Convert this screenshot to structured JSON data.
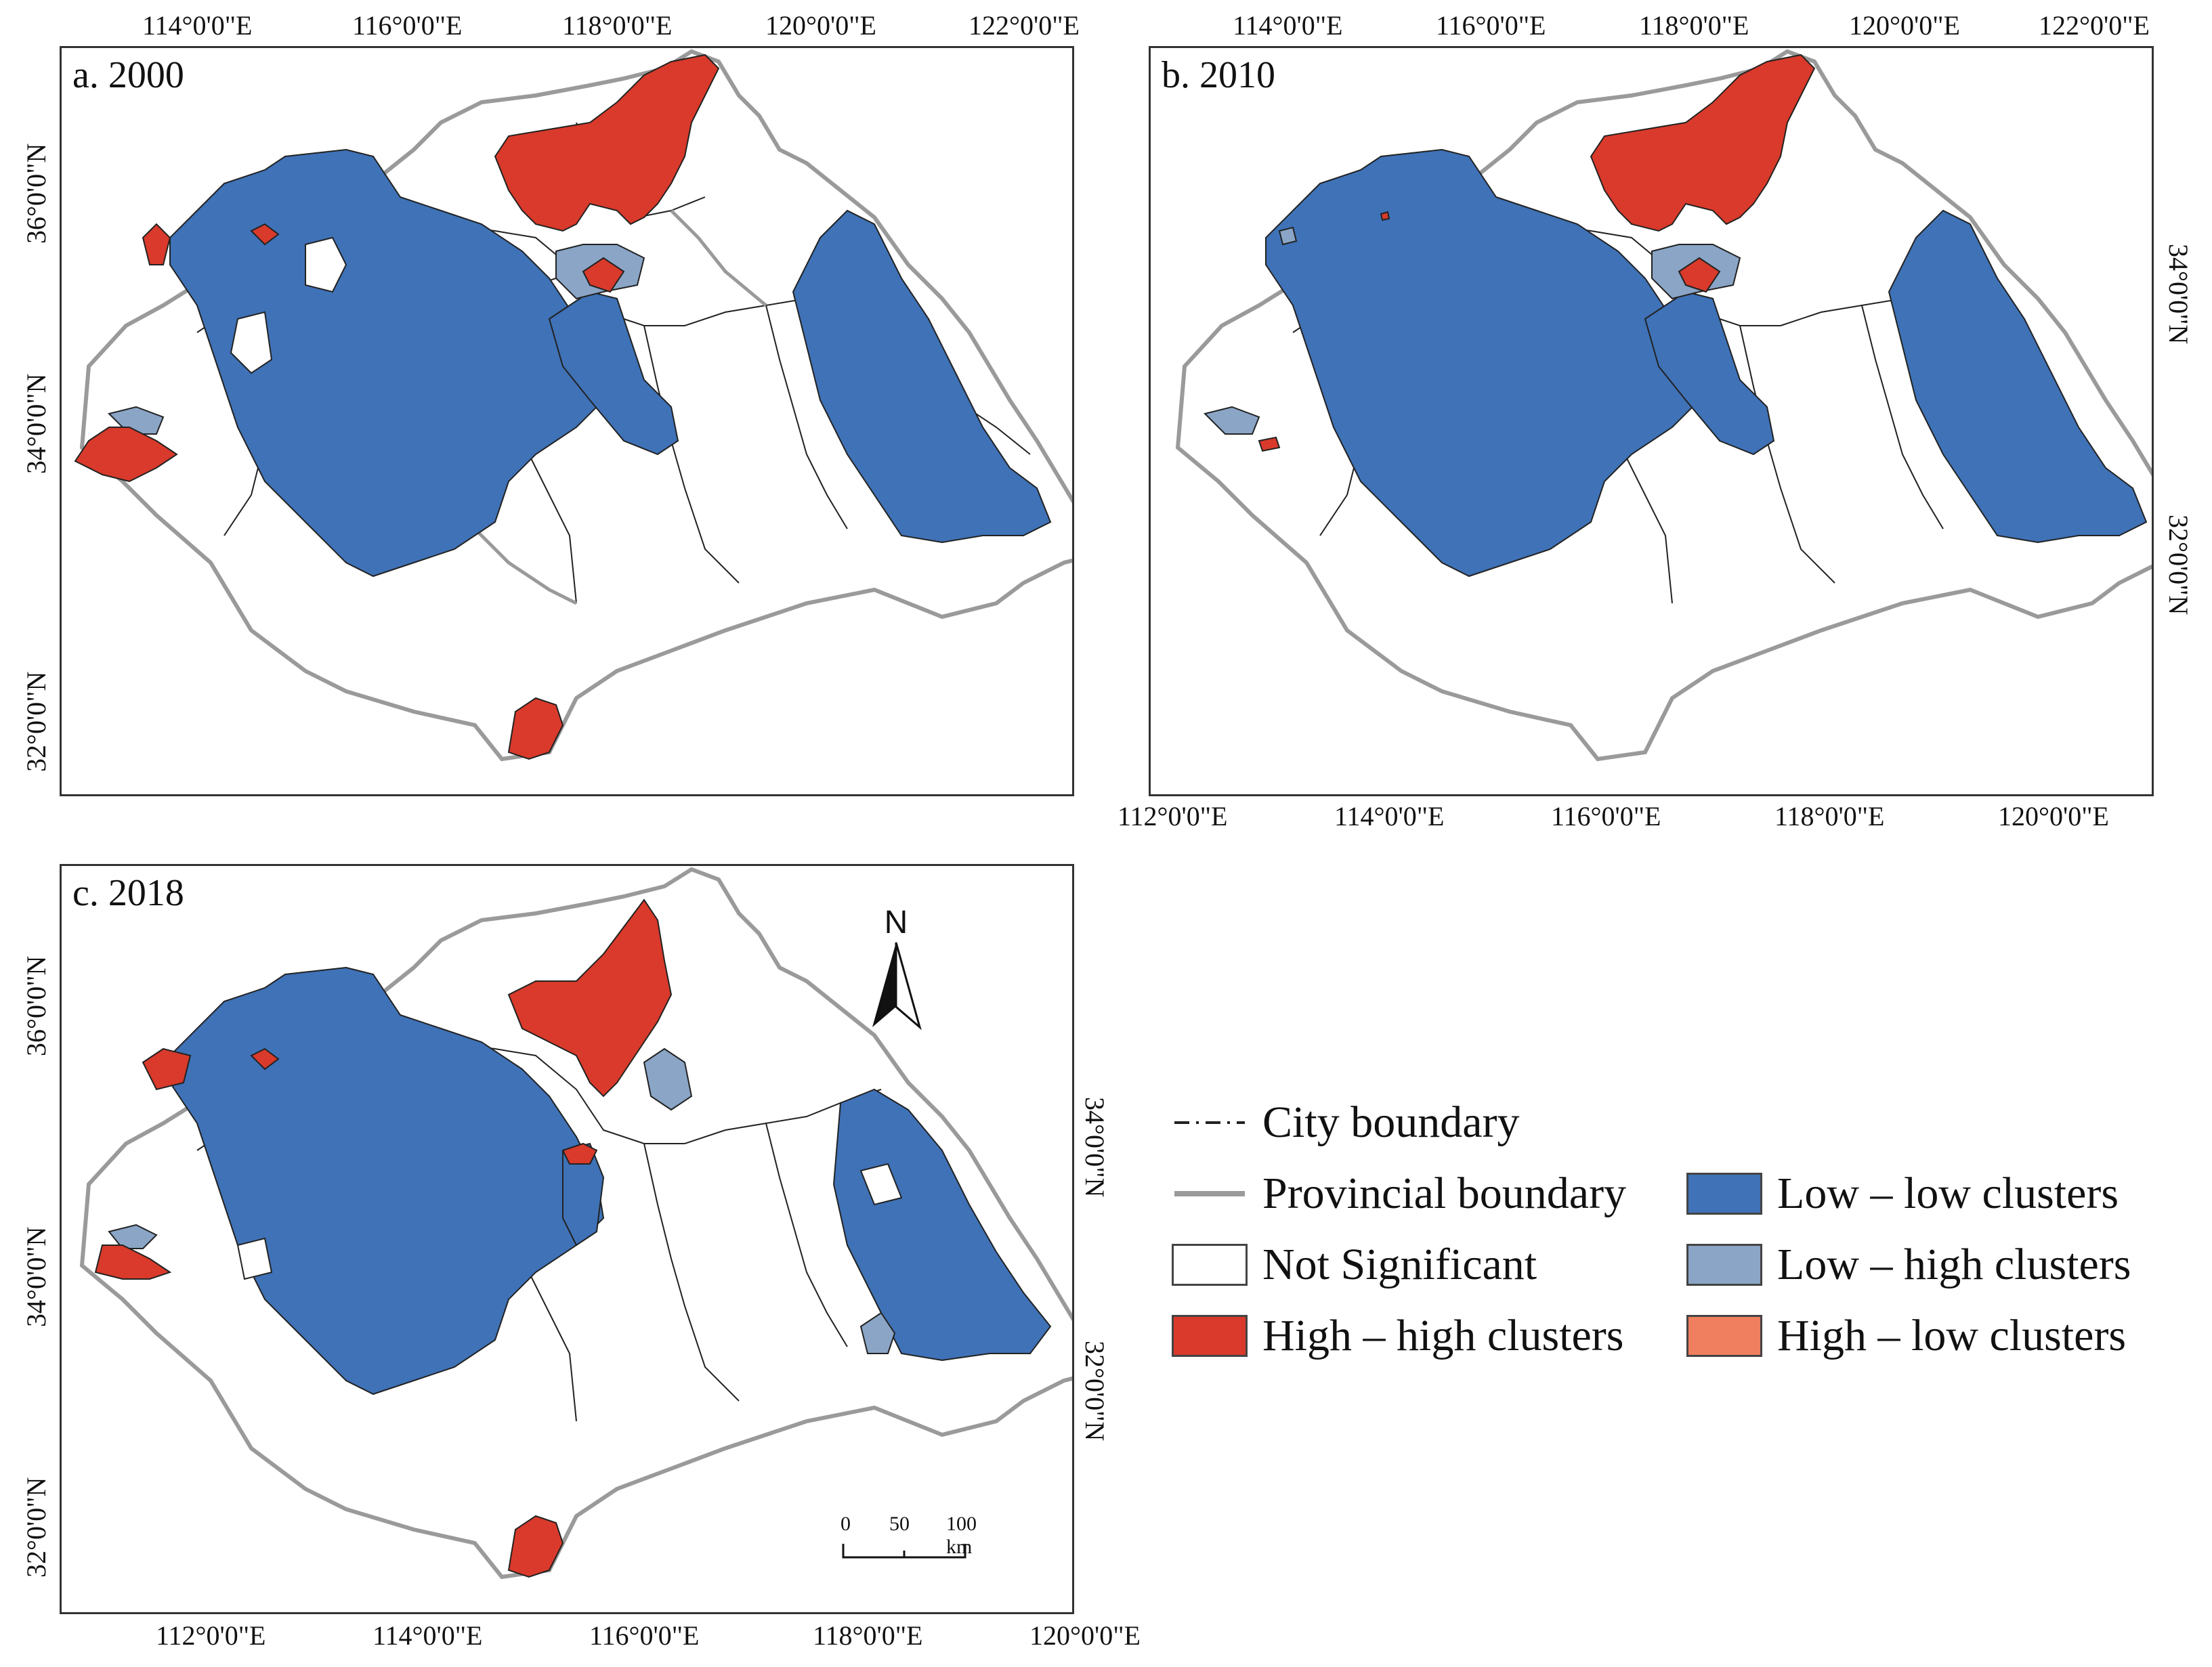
{
  "panels": [
    {
      "label": "a. 2000",
      "top_ticks": [
        "114°0'0\"E",
        "116°0'0\"E",
        "118°0'0\"E",
        "120°0'0\"E",
        "122°0'0\"E"
      ],
      "left_ticks": [
        "36°0'0\"N",
        "34°0'0\"N",
        "34°0'0\"N",
        "32°0'0\"N",
        "32°0'0\"N"
      ]
    },
    {
      "label": "b. 2010",
      "top_ticks": [
        "114°0'0\"E",
        "116°0'0\"E",
        "118°0'0\"E",
        "120°0'0\"E",
        "122°0'0\"E"
      ],
      "right_ticks": [
        "34°0'0\"N",
        "32°0'0\"N",
        "32°0'0\"N"
      ],
      "bottom_ticks": [
        "112°0'0\"E",
        "114°0'0\"E",
        "116°0'0\"E",
        "118°0'0\"E",
        "120°0'0\"E"
      ]
    },
    {
      "label": "c. 2018",
      "left_ticks": [
        "34°0'0\"N",
        "36°0'0\"N",
        "34°0'0\"N",
        "34°0'0\"N",
        "32°0'0\"N",
        "32°0'0\"N"
      ],
      "right_ticks": [
        "34°0'0\"N",
        "32°0'0\"N",
        "32°0'0\"N"
      ],
      "bottom_ticks": [
        "112°0'0\"E",
        "114°0'0\"E",
        "116°0'0\"E",
        "118°0'0\"E",
        "120°0'0\"E"
      ],
      "north_label": "N",
      "scale_labels": [
        "0",
        "50",
        "100 km"
      ]
    }
  ],
  "legend": {
    "city_boundary": "City boundary",
    "provincial_boundary": "Provincial boundary",
    "not_significant": "Not Significant",
    "high_high": "High – high clusters",
    "low_low": "Low – low clusters",
    "low_high": "Low – high clusters",
    "high_low": "High – low clusters"
  },
  "colors": {
    "high_high": "#d93a2b",
    "low_low": "#3f72b7",
    "low_high": "#8aa5c6",
    "high_low": "#ef7f5e",
    "not_significant": "#ffffff",
    "provincial_boundary": "#9a9a9a",
    "city_boundary": "#222222"
  }
}
